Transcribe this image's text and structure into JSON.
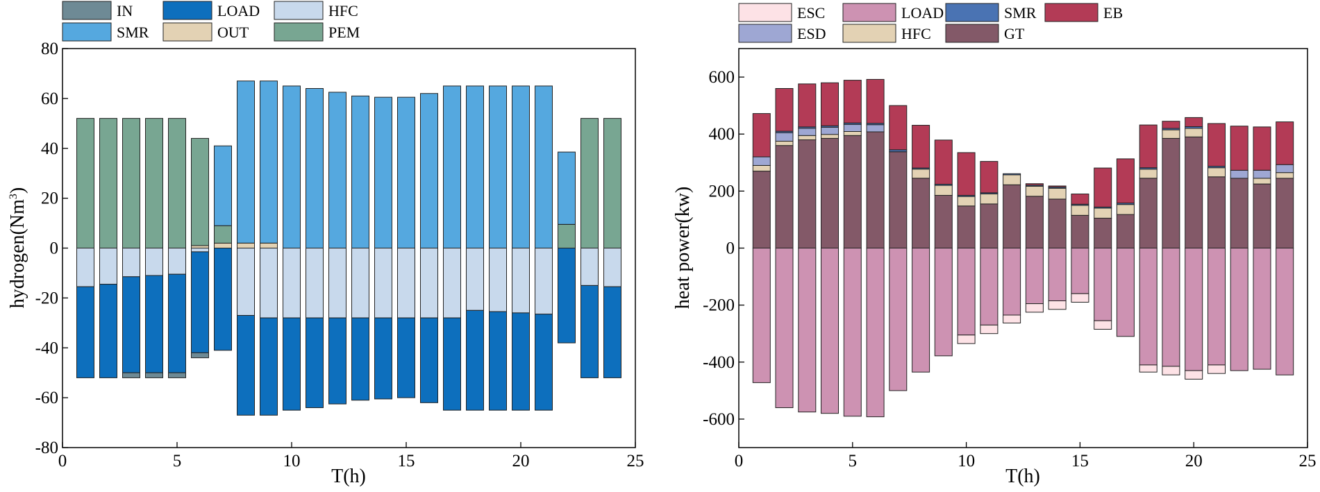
{
  "chart_data": [
    {
      "type": "bar",
      "stacked": true,
      "title": "",
      "xlabel": "T(h)",
      "ylabel": "hydrogen(Nm",
      "ylabel_sup": "3",
      "ylabel_close": ")",
      "xlim": [
        0,
        25
      ],
      "ylim": [
        -80,
        80
      ],
      "xticks": [
        0,
        5,
        10,
        15,
        20,
        25
      ],
      "yticks": [
        -80,
        -60,
        -40,
        -20,
        0,
        20,
        40,
        60,
        80
      ],
      "x": [
        1,
        2,
        3,
        4,
        5,
        6,
        7,
        8,
        9,
        10,
        11,
        12,
        13,
        14,
        15,
        16,
        17,
        18,
        19,
        20,
        21,
        22,
        23,
        24
      ],
      "legend": [
        {
          "name": "IN",
          "color": "#6e8a95"
        },
        {
          "name": "LOAD",
          "color": "#0d6fbd"
        },
        {
          "name": "HFC",
          "color": "#c8d9ec"
        },
        {
          "name": "SMR",
          "color": "#55a8df"
        },
        {
          "name": "OUT",
          "color": "#e3d2b4"
        },
        {
          "name": "PEM",
          "color": "#78a692"
        }
      ],
      "positive_series": [
        {
          "name": "OUT",
          "color": "#e3d2b4",
          "values": [
            0,
            0,
            0,
            0,
            0,
            1,
            2,
            2,
            2,
            0,
            0,
            0,
            0,
            0,
            0,
            0,
            0,
            0,
            0,
            0,
            0,
            0,
            0,
            0
          ]
        },
        {
          "name": "PEM",
          "color": "#78a692",
          "values": [
            52,
            52,
            52,
            52,
            52,
            43,
            7,
            0,
            0,
            0,
            0,
            0,
            0,
            0,
            0,
            0,
            0,
            0,
            0,
            0,
            0,
            9.5,
            52,
            52
          ]
        },
        {
          "name": "SMR",
          "color": "#55a8df",
          "values": [
            0,
            0,
            0,
            0,
            0,
            0,
            32,
            65,
            65,
            65,
            64,
            62.5,
            61,
            60.5,
            60.5,
            62,
            65,
            65,
            65,
            65,
            65,
            29,
            0,
            0
          ]
        }
      ],
      "negative_series": [
        {
          "name": "HFC",
          "color": "#c8d9ec",
          "values": [
            15.5,
            14.5,
            11.5,
            11,
            10.5,
            1.5,
            0,
            27,
            28,
            28,
            28,
            28,
            28,
            28,
            28,
            28,
            28,
            25,
            25.5,
            26,
            26.5,
            0,
            15,
            15.5
          ]
        },
        {
          "name": "LOAD",
          "color": "#0d6fbd",
          "values": [
            36.5,
            37.5,
            38.5,
            39,
            39.5,
            40.5,
            41,
            40,
            39,
            37,
            36,
            34.5,
            33,
            32.5,
            32,
            34,
            37,
            40,
            39.5,
            39,
            38.5,
            38,
            37,
            36.5
          ]
        },
        {
          "name": "IN",
          "color": "#6e8a95",
          "values": [
            0,
            0,
            2,
            2,
            2,
            2,
            0,
            0,
            0,
            0,
            0,
            0,
            0,
            0,
            0,
            0,
            0,
            0,
            0,
            0,
            0,
            0,
            0,
            0
          ]
        }
      ]
    },
    {
      "type": "bar",
      "stacked": true,
      "title": "",
      "xlabel": "T(h)",
      "ylabel": "heat power(kw)",
      "xlim": [
        0,
        25
      ],
      "ylim": [
        -700,
        700
      ],
      "xticks": [
        0,
        5,
        10,
        15,
        20,
        25
      ],
      "yticks": [
        -600,
        -400,
        -200,
        0,
        200,
        400,
        600
      ],
      "x": [
        1,
        2,
        3,
        4,
        5,
        6,
        7,
        8,
        9,
        10,
        11,
        12,
        13,
        14,
        15,
        16,
        17,
        18,
        19,
        20,
        21,
        22,
        23,
        24
      ],
      "legend": [
        {
          "name": "ESC",
          "color": "#fde2e6"
        },
        {
          "name": "LOAD",
          "color": "#cd92b2"
        },
        {
          "name": "SMR",
          "color": "#4a73b3"
        },
        {
          "name": "EB",
          "color": "#b33b56"
        },
        {
          "name": "ESD",
          "color": "#9ea7d3"
        },
        {
          "name": "HFC",
          "color": "#e3d2b4"
        },
        {
          "name": "GT",
          "color": "#835968"
        }
      ],
      "positive_series": [
        {
          "name": "GT",
          "color": "#835968",
          "values": [
            270,
            360,
            380,
            385,
            395,
            408,
            338,
            245,
            185,
            148,
            155,
            222,
            182,
            172,
            115,
            105,
            118,
            245,
            385,
            390,
            250,
            245,
            225,
            245
          ]
        },
        {
          "name": "HFC",
          "color": "#e3d2b4",
          "values": [
            20,
            15,
            15,
            14,
            14,
            0,
            0,
            32,
            35,
            33,
            35,
            35,
            35,
            38,
            35,
            35,
            35,
            32,
            30,
            30,
            32,
            0,
            20,
            20
          ]
        },
        {
          "name": "ESD",
          "color": "#9ea7d3",
          "values": [
            30,
            30,
            25,
            25,
            25,
            25,
            0,
            0,
            0,
            0,
            0,
            0,
            0,
            0,
            0,
            0,
            0,
            0,
            0,
            0,
            0,
            28,
            28,
            28
          ]
        },
        {
          "name": "SMR",
          "color": "#4a73b3",
          "values": [
            0,
            5,
            5,
            5,
            5,
            5,
            7,
            4,
            4,
            4,
            4,
            4,
            4,
            4,
            4,
            4,
            5,
            5,
            5,
            6,
            5,
            0,
            0,
            0
          ]
        },
        {
          "name": "EB",
          "color": "#b33b56",
          "values": [
            152,
            150,
            151,
            151,
            150,
            154,
            155,
            150,
            155,
            150,
            110,
            0,
            5,
            4,
            36,
            137,
            155,
            150,
            25,
            32,
            150,
            155,
            152,
            150
          ]
        }
      ],
      "negative_series": [
        {
          "name": "LOAD",
          "color": "#cd92b2",
          "values": [
            472,
            560,
            575,
            580,
            590,
            592,
            500,
            435,
            378,
            305,
            270,
            235,
            195,
            185,
            160,
            255,
            310,
            410,
            415,
            430,
            410,
            430,
            425,
            445
          ]
        },
        {
          "name": "ESC",
          "color": "#fde2e6",
          "values": [
            0,
            0,
            0,
            0,
            0,
            0,
            0,
            0,
            0,
            30,
            30,
            28,
            30,
            30,
            30,
            30,
            0,
            25,
            30,
            30,
            30,
            0,
            0,
            0
          ]
        }
      ]
    }
  ]
}
